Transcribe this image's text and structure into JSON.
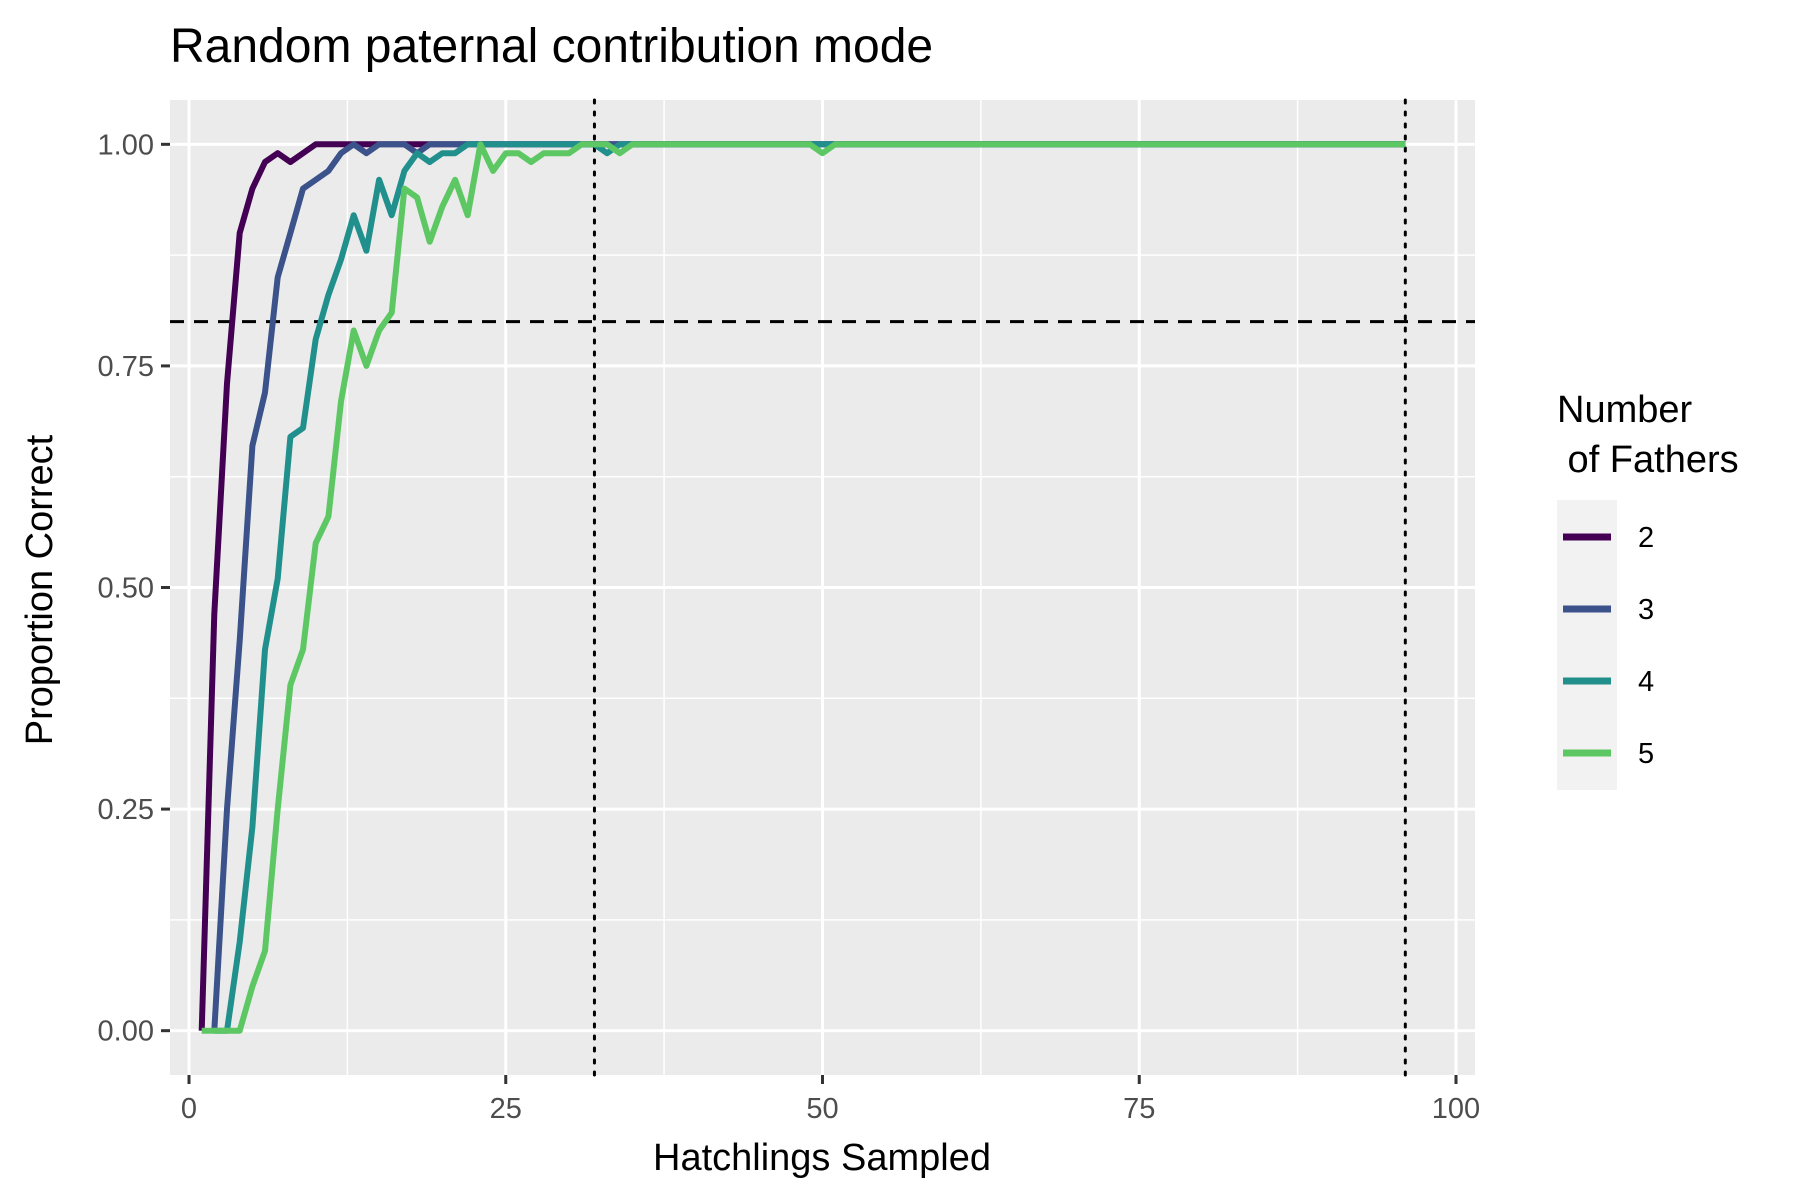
{
  "chart_data": {
    "type": "line",
    "title": "Random paternal contribution mode",
    "xlabel": "Hatchlings Sampled",
    "ylabel": "Proportion Correct",
    "xlim": [
      -1.5,
      101.5
    ],
    "ylim": [
      -0.05,
      1.05
    ],
    "x_ticks": [
      0,
      25,
      50,
      75,
      100
    ],
    "x_tick_labels": [
      "0",
      "25",
      "50",
      "75",
      "100"
    ],
    "y_ticks": [
      0,
      0.25,
      0.5,
      0.75,
      1.0
    ],
    "y_tick_labels": [
      "0.00",
      "0.25",
      "0.50",
      "0.75",
      "1.00"
    ],
    "grid": true,
    "legend": {
      "title_lines": [
        "Number",
        " of Fathers"
      ],
      "position": "right"
    },
    "reference_lines": [
      {
        "orientation": "horizontal",
        "value": 0.8,
        "style": "dashed"
      },
      {
        "orientation": "vertical",
        "value": 32,
        "style": "dotted"
      },
      {
        "orientation": "vertical",
        "value": 96,
        "style": "dotted"
      }
    ],
    "series": [
      {
        "name": "2",
        "color": "#440154",
        "points": [
          [
            1,
            0
          ],
          [
            2,
            0.47
          ],
          [
            3,
            0.73
          ],
          [
            4,
            0.9
          ],
          [
            5,
            0.95
          ],
          [
            6,
            0.98
          ],
          [
            7,
            0.99
          ],
          [
            8,
            0.98
          ],
          [
            9,
            0.99
          ],
          [
            10,
            1
          ],
          [
            20,
            1
          ],
          [
            96,
            1
          ]
        ]
      },
      {
        "name": "3",
        "color": "#3b528b",
        "points": [
          [
            2,
            0
          ],
          [
            3,
            0.25
          ],
          [
            4,
            0.44
          ],
          [
            5,
            0.66
          ],
          [
            6,
            0.72
          ],
          [
            7,
            0.85
          ],
          [
            8,
            0.9
          ],
          [
            9,
            0.95
          ],
          [
            10,
            0.96
          ],
          [
            11,
            0.97
          ],
          [
            12,
            0.99
          ],
          [
            13,
            1
          ],
          [
            14,
            0.99
          ],
          [
            15,
            1
          ],
          [
            17,
            1
          ],
          [
            18,
            0.99
          ],
          [
            19,
            1
          ],
          [
            96,
            1
          ]
        ]
      },
      {
        "name": "4",
        "color": "#21908c",
        "points": [
          [
            2,
            0
          ],
          [
            3,
            0
          ],
          [
            4,
            0.1
          ],
          [
            5,
            0.23
          ],
          [
            6,
            0.43
          ],
          [
            7,
            0.51
          ],
          [
            8,
            0.67
          ],
          [
            9,
            0.68
          ],
          [
            10,
            0.78
          ],
          [
            11,
            0.83
          ],
          [
            12,
            0.87
          ],
          [
            13,
            0.92
          ],
          [
            14,
            0.88
          ],
          [
            15,
            0.96
          ],
          [
            16,
            0.92
          ],
          [
            17,
            0.97
          ],
          [
            18,
            0.99
          ],
          [
            19,
            0.98
          ],
          [
            20,
            0.99
          ],
          [
            21,
            0.99
          ],
          [
            22,
            1
          ],
          [
            30,
            1
          ],
          [
            31,
            1
          ],
          [
            32,
            1
          ],
          [
            33,
            0.99
          ],
          [
            34,
            1
          ],
          [
            49,
            1
          ],
          [
            50,
            1
          ],
          [
            96,
            1
          ]
        ]
      },
      {
        "name": "5",
        "color": "#5dc863",
        "points": [
          [
            1,
            0
          ],
          [
            4,
            0
          ],
          [
            5,
            0.05
          ],
          [
            6,
            0.09
          ],
          [
            7,
            0.25
          ],
          [
            8,
            0.39
          ],
          [
            9,
            0.43
          ],
          [
            10,
            0.55
          ],
          [
            11,
            0.58
          ],
          [
            12,
            0.71
          ],
          [
            13,
            0.79
          ],
          [
            14,
            0.75
          ],
          [
            15,
            0.79
          ],
          [
            16,
            0.81
          ],
          [
            17,
            0.95
          ],
          [
            18,
            0.94
          ],
          [
            19,
            0.89
          ],
          [
            20,
            0.93
          ],
          [
            21,
            0.96
          ],
          [
            22,
            0.92
          ],
          [
            23,
            1
          ],
          [
            24,
            0.97
          ],
          [
            25,
            0.99
          ],
          [
            26,
            0.99
          ],
          [
            27,
            0.98
          ],
          [
            28,
            0.99
          ],
          [
            29,
            0.99
          ],
          [
            30,
            0.99
          ],
          [
            31,
            1
          ],
          [
            32,
            1
          ],
          [
            33,
            1
          ],
          [
            34,
            0.99
          ],
          [
            35,
            1
          ],
          [
            49,
            1
          ],
          [
            50,
            0.99
          ],
          [
            51,
            1
          ],
          [
            96,
            1
          ]
        ]
      }
    ]
  }
}
